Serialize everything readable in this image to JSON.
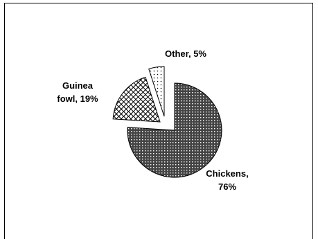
{
  "chart_data": {
    "type": "pie",
    "title": "",
    "slices": [
      {
        "name": "Chickens",
        "value": 76,
        "label_lines": [
          "Chickens,",
          "76%"
        ]
      },
      {
        "name": "Guinea fowl",
        "value": 19,
        "label_lines": [
          "Guinea",
          "fowl, 19%"
        ]
      },
      {
        "name": "Other",
        "value": 5,
        "label_lines": [
          "Other, 5%"
        ]
      }
    ],
    "exploded": true,
    "legend": "none",
    "colors": {
      "stroke": "#000000",
      "fill_background": "#ffffff"
    }
  }
}
